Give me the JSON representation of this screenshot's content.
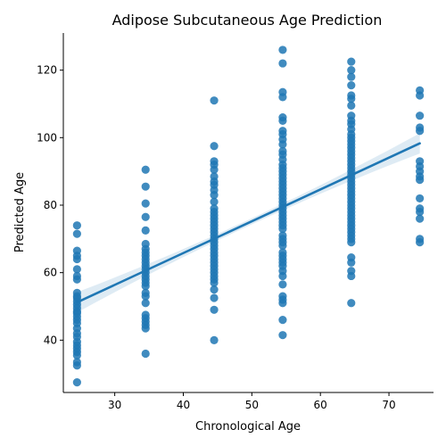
{
  "chart_data": {
    "type": "scatter",
    "title": "Adipose Subcutaneous Age Prediction",
    "xlabel": "Chronological Age",
    "ylabel": "Predicted Age",
    "xlim": [
      22.5,
      76.5
    ],
    "ylim": [
      24.5,
      131
    ],
    "x_ticks": [
      30,
      40,
      50,
      60,
      70
    ],
    "y_ticks": [
      40,
      60,
      80,
      100,
      120
    ],
    "grid": false,
    "point_color": "#1f77b4",
    "series": [
      {
        "points": [
          [
            24.5,
            74
          ],
          [
            24.5,
            71.5
          ],
          [
            24.5,
            66.5
          ],
          [
            24.5,
            65
          ],
          [
            24.5,
            64
          ],
          [
            24.5,
            61
          ],
          [
            24.5,
            59
          ],
          [
            24.5,
            58
          ],
          [
            24.5,
            54
          ],
          [
            24.5,
            53
          ],
          [
            24.5,
            52.5
          ],
          [
            24.5,
            51.5
          ],
          [
            24.5,
            50.5
          ],
          [
            24.5,
            49.5
          ],
          [
            24.5,
            48.5
          ],
          [
            24.5,
            48
          ],
          [
            24.5,
            47
          ],
          [
            24.5,
            46
          ],
          [
            24.5,
            45
          ],
          [
            24.5,
            43.5
          ],
          [
            24.5,
            42
          ],
          [
            24.5,
            41
          ],
          [
            24.5,
            39.5
          ],
          [
            24.5,
            38.5
          ],
          [
            24.5,
            37.5
          ],
          [
            24.5,
            36.5
          ],
          [
            24.5,
            35.5
          ],
          [
            24.5,
            33.5
          ],
          [
            24.5,
            32.5
          ],
          [
            24.5,
            27.5
          ],
          [
            34.5,
            90.5
          ],
          [
            34.5,
            85.5
          ],
          [
            34.5,
            80.5
          ],
          [
            34.5,
            76.5
          ],
          [
            34.5,
            72.5
          ],
          [
            34.5,
            68.5
          ],
          [
            34.5,
            67
          ],
          [
            34.5,
            66
          ],
          [
            34.5,
            65
          ],
          [
            34.5,
            64
          ],
          [
            34.5,
            63
          ],
          [
            34.5,
            62
          ],
          [
            34.5,
            61
          ],
          [
            34.5,
            60
          ],
          [
            34.5,
            59
          ],
          [
            34.5,
            58
          ],
          [
            34.5,
            57
          ],
          [
            34.5,
            56
          ],
          [
            34.5,
            54
          ],
          [
            34.5,
            53
          ],
          [
            34.5,
            51
          ],
          [
            34.5,
            47.5
          ],
          [
            34.5,
            46.5
          ],
          [
            34.5,
            45.5
          ],
          [
            34.5,
            44.5
          ],
          [
            34.5,
            43.5
          ],
          [
            34.5,
            36
          ],
          [
            44.5,
            111
          ],
          [
            44.5,
            97.5
          ],
          [
            44.5,
            93
          ],
          [
            44.5,
            92
          ],
          [
            44.5,
            90.5
          ],
          [
            44.5,
            88.5
          ],
          [
            44.5,
            87
          ],
          [
            44.5,
            86
          ],
          [
            44.5,
            84.5
          ],
          [
            44.5,
            83
          ],
          [
            44.5,
            81
          ],
          [
            44.5,
            79
          ],
          [
            44.5,
            78
          ],
          [
            44.5,
            77
          ],
          [
            44.5,
            76
          ],
          [
            44.5,
            75
          ],
          [
            44.5,
            74
          ],
          [
            44.5,
            73
          ],
          [
            44.5,
            72
          ],
          [
            44.5,
            71
          ],
          [
            44.5,
            70
          ],
          [
            44.5,
            69
          ],
          [
            44.5,
            68
          ],
          [
            44.5,
            67
          ],
          [
            44.5,
            66
          ],
          [
            44.5,
            65
          ],
          [
            44.5,
            64
          ],
          [
            44.5,
            63
          ],
          [
            44.5,
            62
          ],
          [
            44.5,
            61
          ],
          [
            44.5,
            60
          ],
          [
            44.5,
            59
          ],
          [
            44.5,
            58
          ],
          [
            44.5,
            57
          ],
          [
            44.5,
            55
          ],
          [
            44.5,
            52.5
          ],
          [
            44.5,
            49
          ],
          [
            44.5,
            40
          ],
          [
            54.5,
            126
          ],
          [
            54.5,
            122
          ],
          [
            54.5,
            113.5
          ],
          [
            54.5,
            112
          ],
          [
            54.5,
            106
          ],
          [
            54.5,
            105
          ],
          [
            54.5,
            102
          ],
          [
            54.5,
            101
          ],
          [
            54.5,
            99.5
          ],
          [
            54.5,
            98
          ],
          [
            54.5,
            96
          ],
          [
            54.5,
            95
          ],
          [
            54.5,
            93.5
          ],
          [
            54.5,
            92
          ],
          [
            54.5,
            91
          ],
          [
            54.5,
            90
          ],
          [
            54.5,
            89
          ],
          [
            54.5,
            88
          ],
          [
            54.5,
            87
          ],
          [
            54.5,
            86
          ],
          [
            54.5,
            85
          ],
          [
            54.5,
            84
          ],
          [
            54.5,
            83
          ],
          [
            54.5,
            82
          ],
          [
            54.5,
            81
          ],
          [
            54.5,
            80
          ],
          [
            54.5,
            79
          ],
          [
            54.5,
            78
          ],
          [
            54.5,
            77
          ],
          [
            54.5,
            76
          ],
          [
            54.5,
            75
          ],
          [
            54.5,
            74
          ],
          [
            54.5,
            73
          ],
          [
            54.5,
            71
          ],
          [
            54.5,
            70
          ],
          [
            54.5,
            69
          ],
          [
            54.5,
            68
          ],
          [
            54.5,
            66
          ],
          [
            54.5,
            65
          ],
          [
            54.5,
            64
          ],
          [
            54.5,
            63
          ],
          [
            54.5,
            62
          ],
          [
            54.5,
            60.5
          ],
          [
            54.5,
            59
          ],
          [
            54.5,
            56.5
          ],
          [
            54.5,
            53
          ],
          [
            54.5,
            52
          ],
          [
            54.5,
            51
          ],
          [
            54.5,
            46
          ],
          [
            54.5,
            41.5
          ],
          [
            64.5,
            122.5
          ],
          [
            64.5,
            120
          ],
          [
            64.5,
            118
          ],
          [
            64.5,
            115.5
          ],
          [
            64.5,
            112.5
          ],
          [
            64.5,
            111.5
          ],
          [
            64.5,
            109.5
          ],
          [
            64.5,
            106.5
          ],
          [
            64.5,
            105
          ],
          [
            64.5,
            104
          ],
          [
            64.5,
            102.5
          ],
          [
            64.5,
            101
          ],
          [
            64.5,
            100
          ],
          [
            64.5,
            99
          ],
          [
            64.5,
            98
          ],
          [
            64.5,
            97
          ],
          [
            64.5,
            96
          ],
          [
            64.5,
            95
          ],
          [
            64.5,
            94
          ],
          [
            64.5,
            93
          ],
          [
            64.5,
            92
          ],
          [
            64.5,
            91
          ],
          [
            64.5,
            90
          ],
          [
            64.5,
            89
          ],
          [
            64.5,
            88
          ],
          [
            64.5,
            87
          ],
          [
            64.5,
            86
          ],
          [
            64.5,
            85
          ],
          [
            64.5,
            84
          ],
          [
            64.5,
            83
          ],
          [
            64.5,
            82
          ],
          [
            64.5,
            81
          ],
          [
            64.5,
            80
          ],
          [
            64.5,
            79
          ],
          [
            64.5,
            78
          ],
          [
            64.5,
            77
          ],
          [
            64.5,
            76
          ],
          [
            64.5,
            75
          ],
          [
            64.5,
            74
          ],
          [
            64.5,
            73
          ],
          [
            64.5,
            72
          ],
          [
            64.5,
            71
          ],
          [
            64.5,
            70
          ],
          [
            64.5,
            69
          ],
          [
            64.5,
            64.5
          ],
          [
            64.5,
            63
          ],
          [
            64.5,
            60.5
          ],
          [
            64.5,
            59
          ],
          [
            64.5,
            51
          ],
          [
            74.5,
            114
          ],
          [
            74.5,
            112.5
          ],
          [
            74.5,
            106.5
          ],
          [
            74.5,
            103
          ],
          [
            74.5,
            102
          ],
          [
            74.5,
            93
          ],
          [
            74.5,
            91.5
          ],
          [
            74.5,
            90
          ],
          [
            74.5,
            88.5
          ],
          [
            74.5,
            87.5
          ],
          [
            74.5,
            82
          ],
          [
            74.5,
            79
          ],
          [
            74.5,
            78
          ],
          [
            74.5,
            76
          ],
          [
            74.5,
            70
          ],
          [
            74.5,
            69
          ]
        ]
      }
    ],
    "regression": {
      "x0": 24.5,
      "y0": 51.2,
      "x1": 74.5,
      "y1": 98.3,
      "line_color": "#1f77b4",
      "band_color": "#1f77b4",
      "band_halfwidth_ends": 3.0,
      "band_halfwidth_center": 0.9
    }
  }
}
